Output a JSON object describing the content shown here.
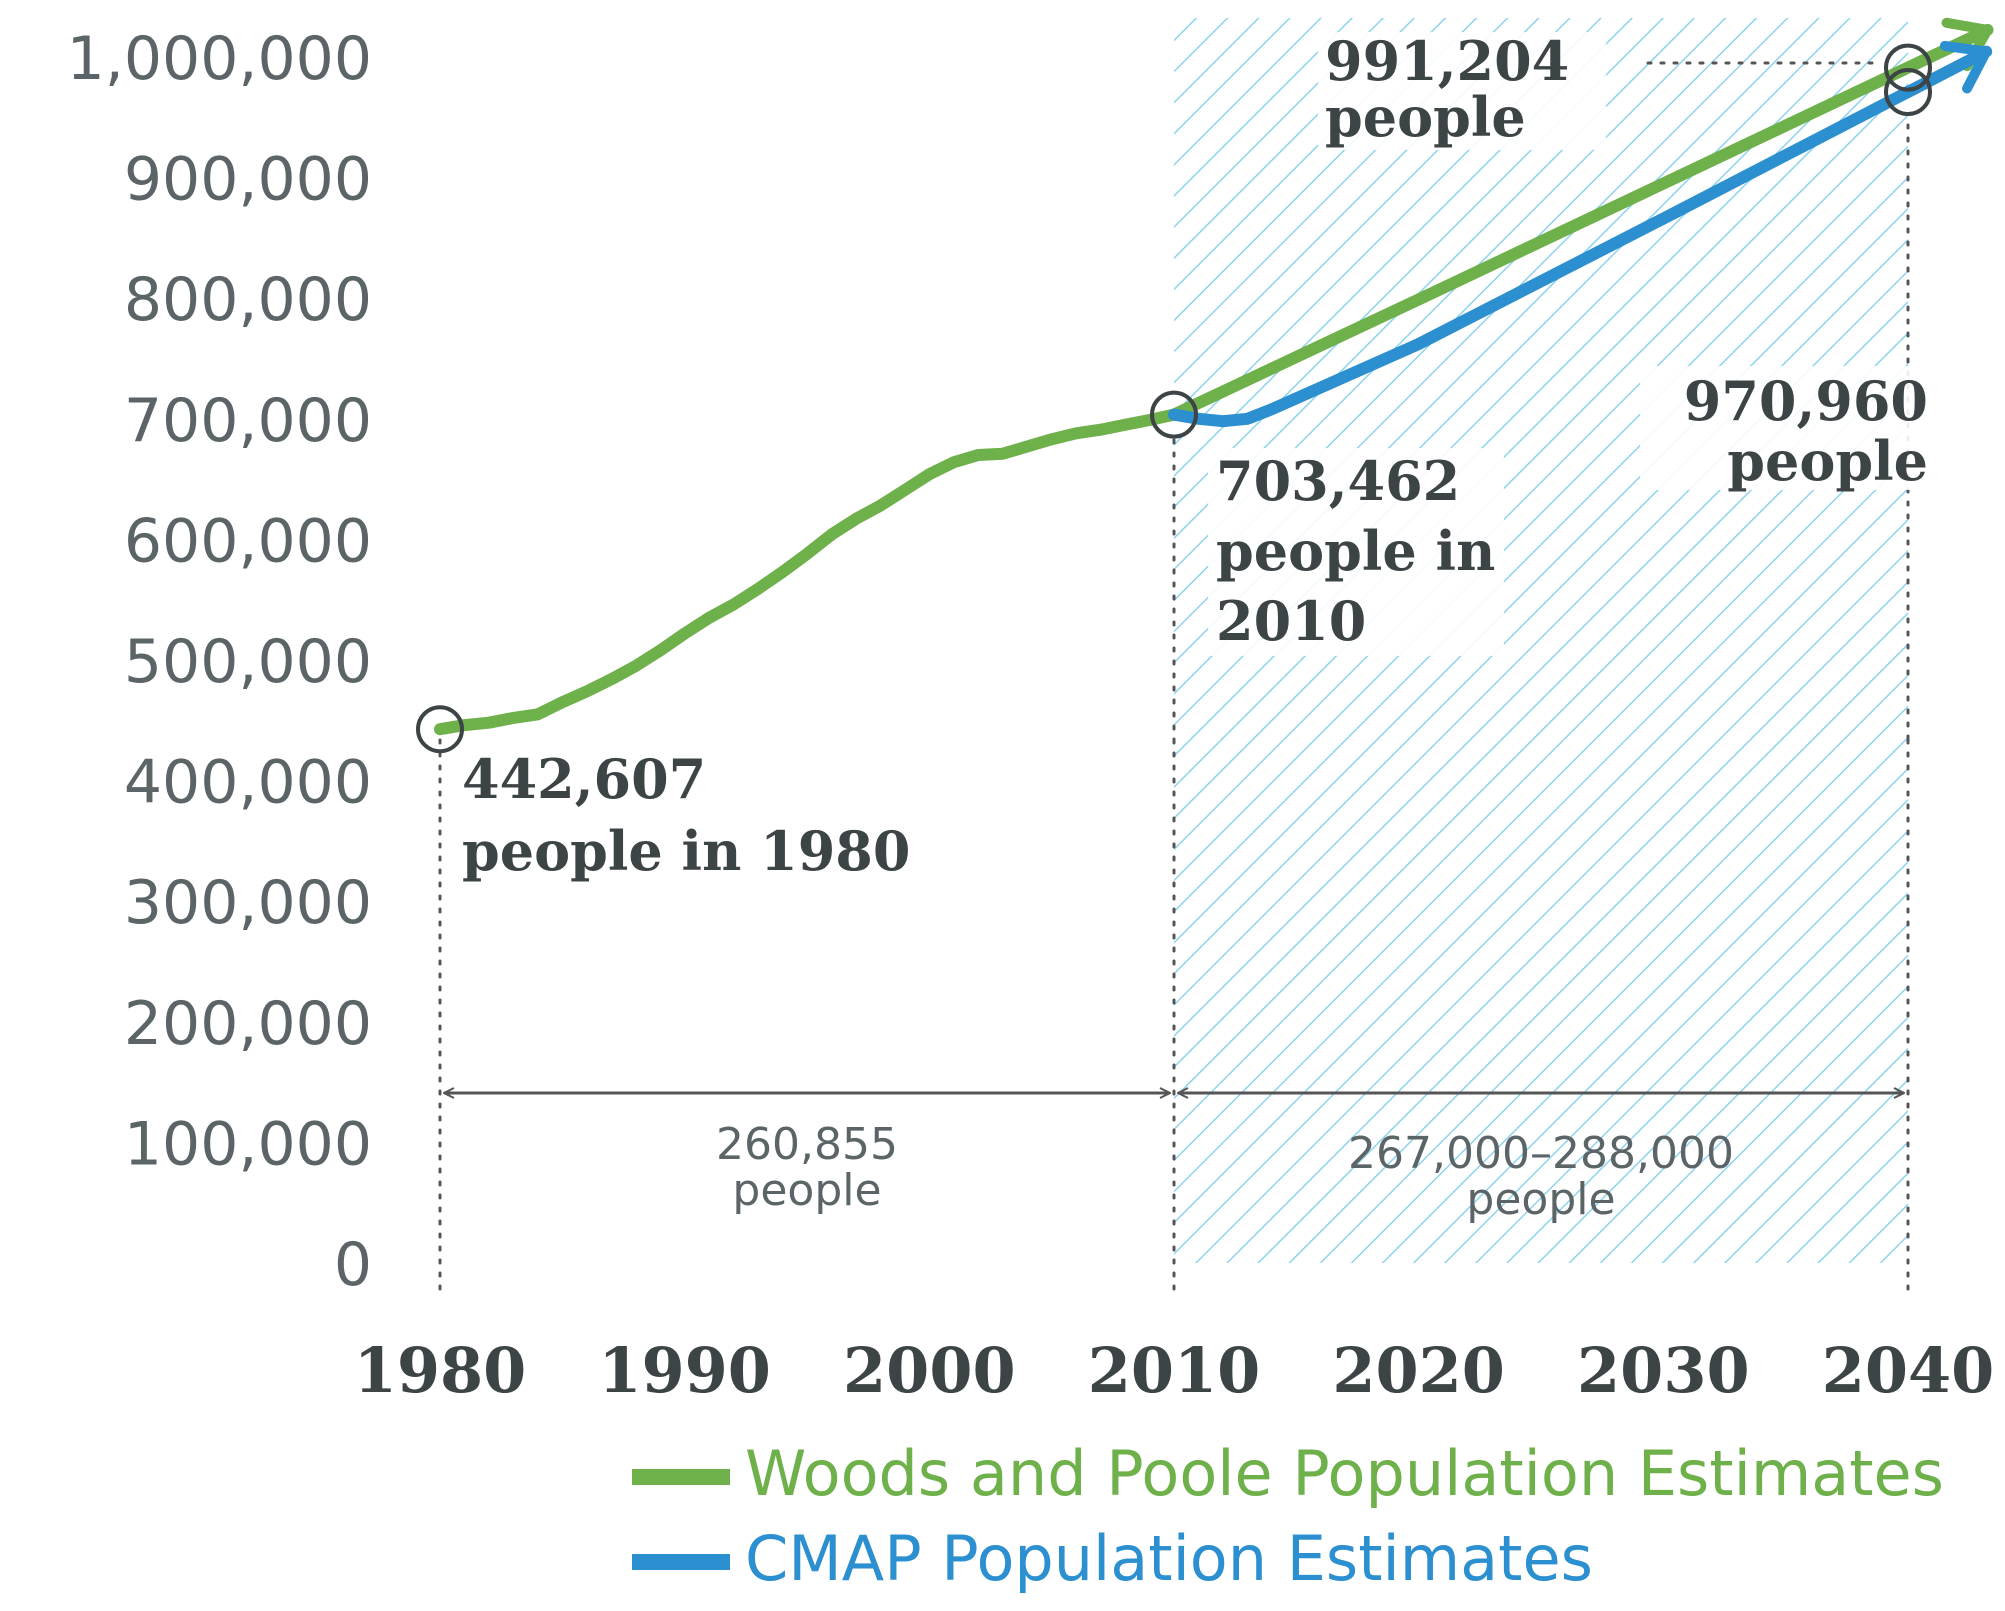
{
  "chart_data": {
    "type": "line",
    "ylim": [
      0,
      1000000
    ],
    "xlim": [
      1980,
      2040
    ],
    "y_ticks": [
      "0",
      "100,000",
      "200,000",
      "300,000",
      "400,000",
      "500,000",
      "600,000",
      "700,000",
      "800,000",
      "900,000",
      "1,000,000"
    ],
    "x_ticks": [
      "1980",
      "1990",
      "2000",
      "2010",
      "2020",
      "2030",
      "2040"
    ],
    "projection_region": {
      "from": 2010,
      "to": 2040,
      "pattern": "diagonal hatch",
      "color": "#8ed3ee"
    },
    "series": [
      {
        "name": "Woods and Poole Population Estimates",
        "color": "#6eb04a",
        "points": [
          [
            1980,
            442607
          ],
          [
            1981,
            446000
          ],
          [
            1982,
            448000
          ],
          [
            1983,
            452000
          ],
          [
            1984,
            455000
          ],
          [
            1985,
            465000
          ],
          [
            1986,
            474000
          ],
          [
            1987,
            484000
          ],
          [
            1988,
            495000
          ],
          [
            1989,
            508000
          ],
          [
            1990,
            522000
          ],
          [
            1991,
            535000
          ],
          [
            1992,
            546000
          ],
          [
            1993,
            559000
          ],
          [
            1994,
            573000
          ],
          [
            1995,
            588000
          ],
          [
            1996,
            604000
          ],
          [
            1997,
            617000
          ],
          [
            1998,
            628000
          ],
          [
            1999,
            641000
          ],
          [
            2000,
            654000
          ],
          [
            2001,
            664000
          ],
          [
            2002,
            670000
          ],
          [
            2003,
            671000
          ],
          [
            2004,
            677000
          ],
          [
            2005,
            683000
          ],
          [
            2006,
            688000
          ],
          [
            2007,
            691000
          ],
          [
            2008,
            695000
          ],
          [
            2009,
            699000
          ],
          [
            2010,
            703462
          ],
          [
            2020,
            799000
          ],
          [
            2030,
            895000
          ],
          [
            2040,
            991204
          ]
        ]
      },
      {
        "name": "CMAP Population Estimates",
        "color": "#2b8fd0",
        "points": [
          [
            2010,
            703462
          ],
          [
            2011,
            700000
          ],
          [
            2012,
            698000
          ],
          [
            2013,
            700000
          ],
          [
            2014,
            708000
          ],
          [
            2020,
            762000
          ],
          [
            2030,
            866000
          ],
          [
            2040,
            970960
          ]
        ]
      }
    ],
    "annotations": [
      {
        "point": [
          1980,
          442607
        ],
        "line1": "442,607",
        "line2": "people in 1980"
      },
      {
        "point": [
          2010,
          703462
        ],
        "line1": "703,462",
        "line2": "people in",
        "line3": "2010"
      },
      {
        "point": [
          2040,
          991204
        ],
        "line1": "991,204",
        "line2": "people"
      },
      {
        "point": [
          2040,
          970960
        ],
        "line1": "970,960",
        "line2": "people"
      }
    ],
    "spans": [
      {
        "from": 1980,
        "to": 2010,
        "line1": "260,855",
        "line2": "people"
      },
      {
        "from": 2010,
        "to": 2040,
        "line1": "267,000–288,000",
        "line2": "people"
      }
    ],
    "legend": {
      "placement": "bottom-right",
      "entries": [
        {
          "label": "Woods and Poole Population Estimates",
          "color": "#6eb04a"
        },
        {
          "label": "CMAP Population Estimates",
          "color": "#2b8fd0"
        }
      ]
    }
  }
}
